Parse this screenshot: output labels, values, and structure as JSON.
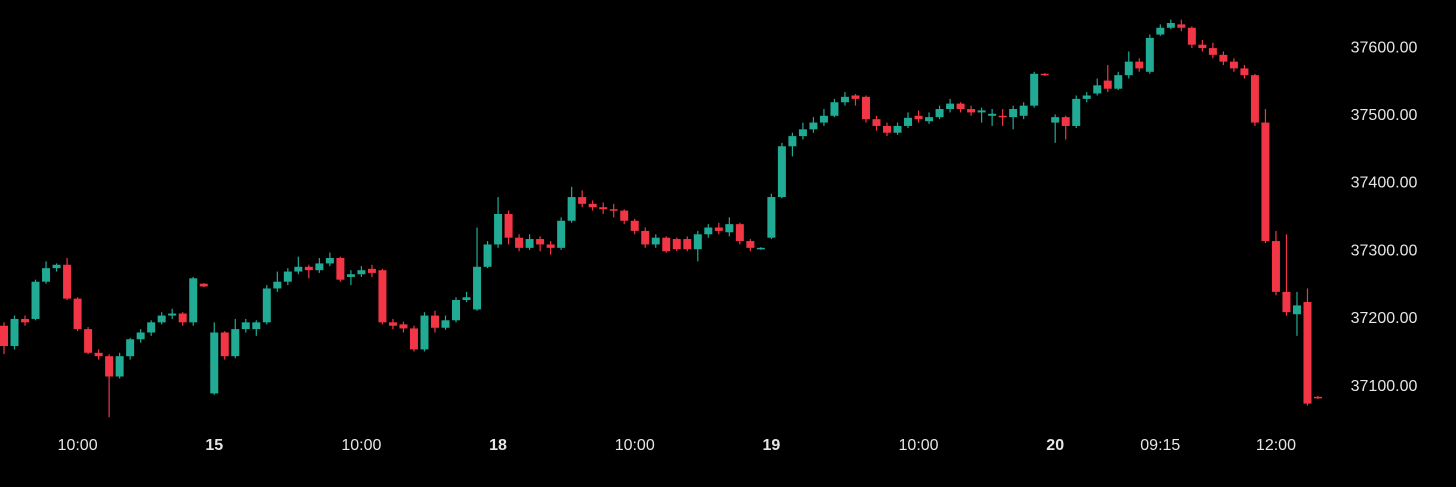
{
  "chart_data": {
    "type": "candlestick",
    "categories": [
      null,
      null,
      null,
      null,
      null,
      null,
      null,
      "10:00",
      null,
      null,
      null,
      null,
      null,
      null,
      null,
      null,
      null,
      null,
      null,
      null,
      "15",
      null,
      null,
      null,
      null,
      null,
      null,
      null,
      null,
      null,
      null,
      null,
      null,
      null,
      "10:00",
      null,
      null,
      null,
      null,
      null,
      null,
      null,
      null,
      null,
      null,
      null,
      null,
      "18",
      null,
      null,
      null,
      null,
      null,
      null,
      null,
      null,
      null,
      null,
      null,
      null,
      "10:00",
      null,
      null,
      null,
      null,
      null,
      null,
      null,
      null,
      null,
      null,
      null,
      null,
      "19",
      null,
      null,
      null,
      null,
      null,
      null,
      null,
      null,
      null,
      null,
      null,
      null,
      null,
      "10:00",
      null,
      null,
      null,
      null,
      null,
      null,
      null,
      null,
      null,
      null,
      null,
      null,
      "20",
      null,
      null,
      null,
      null,
      null,
      null,
      null,
      null,
      null,
      "09:15",
      null,
      null,
      null,
      null,
      null,
      null,
      null,
      null,
      null,
      null,
      "12:00",
      null,
      null,
      null,
      null
    ],
    "open": [
      37190,
      37160,
      37200,
      37200,
      37255,
      37275,
      37280,
      37230,
      37185,
      37150,
      37145,
      37115,
      37145,
      37170,
      37180,
      37195,
      37205,
      37208,
      37195,
      37252,
      37090,
      37180,
      37145,
      37185,
      37185,
      37195,
      37245,
      37255,
      37270,
      37277,
      37272,
      37282,
      37290,
      37262,
      37266,
      37274,
      37272,
      37195,
      37192,
      37186,
      37155,
      37205,
      37187,
      37198,
      37228,
      37214,
      37277,
      37310,
      37355,
      37320,
      37305,
      37318,
      37310,
      37305,
      37345,
      37380,
      37370,
      37365,
      37362,
      37360,
      37345,
      37330,
      37310,
      37320,
      37318,
      37318,
      37303,
      37325,
      37335,
      37328,
      37340,
      37315,
      37303,
      37320,
      37380,
      37455,
      37470,
      37480,
      37490,
      37500,
      37520,
      37530,
      37528,
      37495,
      37485,
      37475,
      37485,
      37500,
      37492,
      37498,
      37510,
      37518,
      37510,
      37505,
      37500,
      37500,
      37498,
      37500,
      37515,
      37562,
      37490,
      37498,
      37485,
      37525,
      37533,
      37552,
      37540,
      37560,
      37580,
      37565,
      37620,
      37630,
      37635,
      37630,
      37605,
      37600,
      37590,
      37580,
      37570,
      37560,
      37490,
      37315,
      37240,
      37207,
      37225,
      37085
    ],
    "high": [
      37195,
      37205,
      37205,
      37258,
      37285,
      37282,
      37290,
      37232,
      37188,
      37155,
      37148,
      37150,
      37172,
      37185,
      37198,
      37210,
      37215,
      37210,
      37262,
      37253,
      37195,
      37182,
      37200,
      37200,
      37198,
      37250,
      37270,
      37275,
      37292,
      37280,
      37290,
      37298,
      37292,
      37272,
      37278,
      37280,
      37274,
      37200,
      37196,
      37190,
      37210,
      37212,
      37205,
      37232,
      37240,
      37335,
      37315,
      37380,
      37360,
      37325,
      37325,
      37322,
      37315,
      37350,
      37395,
      37390,
      37375,
      37372,
      37370,
      37362,
      37348,
      37335,
      37325,
      37322,
      37320,
      37322,
      37330,
      37340,
      37342,
      37350,
      37342,
      37318,
      37306,
      37385,
      37460,
      37475,
      37490,
      37498,
      37510,
      37525,
      37535,
      37532,
      37530,
      37500,
      37490,
      37490,
      37505,
      37508,
      37505,
      37515,
      37525,
      37520,
      37515,
      37512,
      37510,
      37510,
      37515,
      37520,
      37565,
      37563,
      37502,
      37500,
      37530,
      37535,
      37555,
      37575,
      37565,
      37595,
      37585,
      37620,
      37635,
      37642,
      37642,
      37632,
      37612,
      37608,
      37595,
      37585,
      37575,
      37562,
      37510,
      37330,
      37325,
      37240,
      37245,
      37086
    ],
    "low": [
      37148,
      37155,
      37190,
      37198,
      37252,
      37270,
      37228,
      37182,
      37148,
      37140,
      37055,
      37112,
      37140,
      37165,
      37175,
      37192,
      37200,
      37190,
      37190,
      37247,
      37088,
      37140,
      37142,
      37180,
      37175,
      37192,
      37240,
      37250,
      37266,
      37260,
      37268,
      37278,
      37255,
      37250,
      37262,
      37262,
      37192,
      37185,
      37180,
      37152,
      37152,
      37180,
      37184,
      37195,
      37225,
      37212,
      37275,
      37305,
      37310,
      37300,
      37302,
      37300,
      37295,
      37302,
      37342,
      37365,
      37360,
      37355,
      37350,
      37340,
      37325,
      37305,
      37305,
      37298,
      37300,
      37300,
      37285,
      37320,
      37325,
      37322,
      37310,
      37300,
      37302,
      37318,
      37378,
      37440,
      37465,
      37475,
      37485,
      37498,
      37515,
      37515,
      37490,
      37478,
      37470,
      37472,
      37482,
      37490,
      37488,
      37495,
      37505,
      37505,
      37500,
      37490,
      37485,
      37485,
      37480,
      37495,
      37512,
      37559,
      37460,
      37465,
      37482,
      37520,
      37530,
      37535,
      37538,
      37555,
      37565,
      37562,
      37618,
      37628,
      37625,
      37600,
      37595,
      37585,
      37575,
      37565,
      37555,
      37485,
      37312,
      37235,
      37205,
      37175,
      37072,
      37082
    ],
    "close": [
      37160,
      37200,
      37195,
      37255,
      37275,
      37280,
      37230,
      37185,
      37150,
      37145,
      37115,
      37145,
      37170,
      37180,
      37195,
      37205,
      37208,
      37195,
      37260,
      37248,
      37180,
      37145,
      37185,
      37195,
      37195,
      37245,
      37255,
      37270,
      37277,
      37272,
      37282,
      37290,
      37258,
      37266,
      37272,
      37268,
      37195,
      37190,
      37186,
      37155,
      37205,
      37187,
      37198,
      37228,
      37232,
      37277,
      37310,
      37355,
      37320,
      37305,
      37318,
      37310,
      37305,
      37345,
      37380,
      37370,
      37365,
      37362,
      37360,
      37345,
      37330,
      37310,
      37320,
      37300,
      37303,
      37303,
      37325,
      37335,
      37330,
      37340,
      37315,
      37305,
      37305,
      37380,
      37455,
      37470,
      37480,
      37490,
      37500,
      37520,
      37528,
      37525,
      37495,
      37485,
      37475,
      37485,
      37497,
      37495,
      37498,
      37510,
      37518,
      37510,
      37505,
      37508,
      37503,
      37498,
      37510,
      37515,
      37562,
      37560,
      37498,
      37485,
      37525,
      37530,
      37545,
      37540,
      37560,
      37580,
      37570,
      37615,
      37630,
      37637,
      37630,
      37605,
      37600,
      37590,
      37580,
      37570,
      37560,
      37490,
      37315,
      37240,
      37210,
      37220,
      37075,
      37083
    ],
    "up_color": "#22ab94",
    "down_color": "#f23645",
    "ylim": [
      37036,
      37671
    ],
    "yticks": [
      {
        "value": 37100,
        "label": "37100.00"
      },
      {
        "value": 37200,
        "label": "37200.00"
      },
      {
        "value": 37300,
        "label": "37300.00"
      },
      {
        "value": 37400,
        "label": "37400.00"
      },
      {
        "value": 37500,
        "label": "37500.00"
      },
      {
        "value": 37600,
        "label": "37600.00"
      }
    ],
    "grid": false
  }
}
